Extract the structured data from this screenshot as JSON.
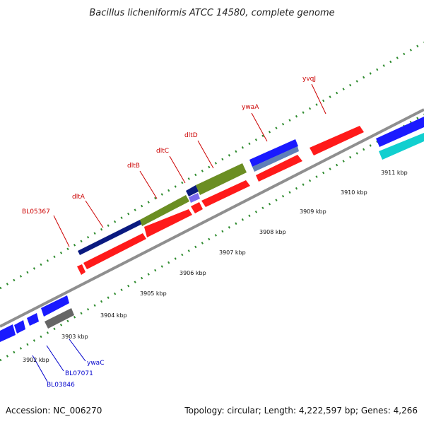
{
  "header": {
    "title": "Bacillus licheniformis ATCC 14580, complete genome"
  },
  "footer": {
    "accession": "Accession: NC_006270",
    "summary": "Topology: circular; Length: 4,222,597 bp; Genes: 4,266"
  },
  "colors": {
    "forward_label": "#cc0000",
    "reverse_label": "#0000cc",
    "backbone": "#999999",
    "dots": "#2e8b2e",
    "red": "#ff1a1a",
    "navy": "#0a1a80",
    "olive": "#6b8e23",
    "blue": "#1a1aff",
    "cyan": "#11cfcf",
    "gray": "#666666"
  },
  "axis": {
    "ticks": [
      "3902 kbp",
      "3903 kbp",
      "3904 kbp",
      "3905 kbp",
      "3906 kbp",
      "3907 kbp",
      "3908 kbp",
      "3909 kbp",
      "3910 kbp",
      "3911 kbp"
    ]
  },
  "forward_labels": [
    "BL05367",
    "dltA",
    "dltB",
    "dltC",
    "dltD",
    "ywaA",
    "yvqJ"
  ],
  "reverse_labels": [
    "BL03846",
    "BL07071",
    "ywaC"
  ]
}
